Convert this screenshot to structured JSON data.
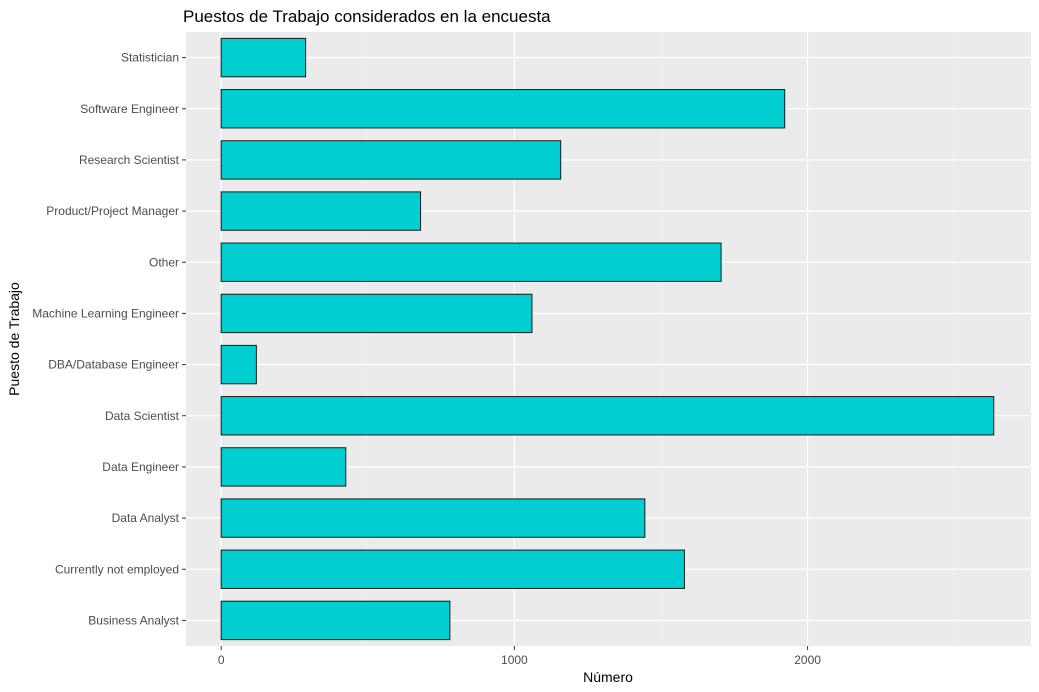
{
  "chart_data": {
    "type": "bar",
    "orientation": "horizontal",
    "title": "Puestos de Trabajo considerados en la encuesta",
    "xlabel": "Número",
    "ylabel": "Puesto de Trabajo",
    "categories": [
      "Business Analyst",
      "Currently not employed",
      "Data Analyst",
      "Data Engineer",
      "Data Scientist",
      "DBA/Database Engineer",
      "Machine Learning Engineer",
      "Other",
      "Product/Project Manager",
      "Research Scientist",
      "Software Engineer",
      "Statistician"
    ],
    "values": [
      780,
      1580,
      1445,
      425,
      2635,
      120,
      1060,
      1705,
      680,
      1158,
      1922,
      288
    ],
    "xlim": [
      -120,
      2762
    ],
    "xticks": [
      0,
      1000,
      2000
    ],
    "xtick_labels": [
      "0",
      "1000",
      "2000"
    ],
    "grid": true,
    "legend": "none",
    "colors": {
      "bar_fill": "#00CED1",
      "bar_stroke": "#1a1a1a",
      "panel_bg": "#EBEBEB",
      "grid_major": "#FFFFFF",
      "grid_minor": "#F4F4F4"
    }
  }
}
